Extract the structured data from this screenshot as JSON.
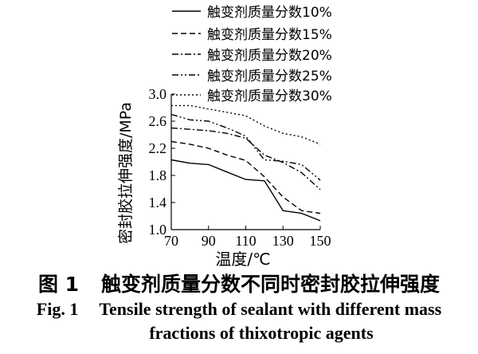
{
  "chart_data": {
    "type": "line",
    "title": "",
    "xlabel": "温度/℃",
    "ylabel": "密封胶拉伸强度/MPa",
    "xlim": [
      70,
      150
    ],
    "ylim": [
      1.0,
      3.0
    ],
    "xticks": [
      "70",
      "90",
      "110",
      "130",
      "150"
    ],
    "yticks": [
      "1.0",
      "1.4",
      "1.8",
      "2.2",
      "2.6",
      "3.0"
    ],
    "grid": false,
    "legend_position": "top",
    "series": [
      {
        "name": "触变剂质量分数10%",
        "dash": "solid",
        "points": [
          [
            70,
            2.03
          ],
          [
            80,
            1.98
          ],
          [
            90,
            1.96
          ],
          [
            100,
            1.85
          ],
          [
            110,
            1.74
          ],
          [
            120,
            1.72
          ],
          [
            130,
            1.28
          ],
          [
            140,
            1.24
          ],
          [
            150,
            1.13
          ]
        ]
      },
      {
        "name": "触变剂质量分数15%",
        "dash": "dashed",
        "points": [
          [
            70,
            2.3
          ],
          [
            80,
            2.26
          ],
          [
            90,
            2.2
          ],
          [
            100,
            2.1
          ],
          [
            110,
            2.02
          ],
          [
            120,
            1.78
          ],
          [
            130,
            1.48
          ],
          [
            140,
            1.28
          ],
          [
            150,
            1.24
          ]
        ]
      },
      {
        "name": "触变剂质量分数20%",
        "dash": "dashdot",
        "points": [
          [
            70,
            2.5
          ],
          [
            80,
            2.48
          ],
          [
            90,
            2.46
          ],
          [
            100,
            2.42
          ],
          [
            110,
            2.35
          ],
          [
            120,
            2.1
          ],
          [
            130,
            1.99
          ],
          [
            140,
            1.84
          ],
          [
            150,
            1.59
          ]
        ]
      },
      {
        "name": "触变剂质量分数25%",
        "dash": "dashdotdot",
        "points": [
          [
            70,
            2.7
          ],
          [
            80,
            2.62
          ],
          [
            90,
            2.6
          ],
          [
            100,
            2.5
          ],
          [
            110,
            2.38
          ],
          [
            120,
            2.03
          ],
          [
            130,
            2.01
          ],
          [
            140,
            1.96
          ],
          [
            150,
            1.73
          ]
        ]
      },
      {
        "name": "触变剂质量分数30%",
        "dash": "dotted",
        "points": [
          [
            70,
            2.83
          ],
          [
            80,
            2.83
          ],
          [
            90,
            2.78
          ],
          [
            100,
            2.73
          ],
          [
            110,
            2.68
          ],
          [
            120,
            2.53
          ],
          [
            130,
            2.42
          ],
          [
            140,
            2.37
          ],
          [
            150,
            2.26
          ]
        ]
      }
    ]
  },
  "caption": {
    "cn_fig": "图 1",
    "cn_text": "触变剂质量分数不同时密封胶拉伸强度",
    "en_fig": "Fig. 1",
    "en_line1": "Tensile strength of sealant with different mass",
    "en_line2": "fractions of thixotropic agents"
  }
}
